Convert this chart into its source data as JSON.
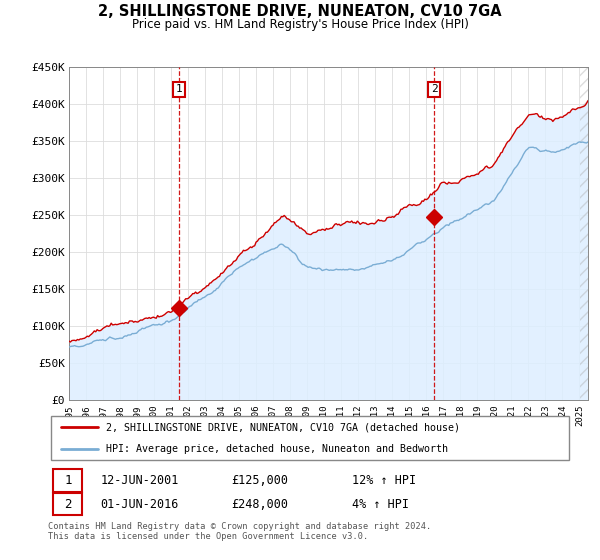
{
  "title": "2, SHILLINGSTONE DRIVE, NUNEATON, CV10 7GA",
  "subtitle": "Price paid vs. HM Land Registry's House Price Index (HPI)",
  "ylim": [
    0,
    450000
  ],
  "yticks": [
    0,
    50000,
    100000,
    150000,
    200000,
    250000,
    300000,
    350000,
    400000,
    450000
  ],
  "legend_line1": "2, SHILLINGSTONE DRIVE, NUNEATON, CV10 7GA (detached house)",
  "legend_line2": "HPI: Average price, detached house, Nuneaton and Bedworth",
  "annotation1_date": "12-JUN-2001",
  "annotation1_price": "£125,000",
  "annotation1_hpi": "12% ↑ HPI",
  "annotation2_date": "01-JUN-2016",
  "annotation2_price": "£248,000",
  "annotation2_hpi": "4% ↑ HPI",
  "footer": "Contains HM Land Registry data © Crown copyright and database right 2024.\nThis data is licensed under the Open Government Licence v3.0.",
  "red_color": "#cc0000",
  "blue_color": "#7aadd4",
  "blue_fill": "#ddeeff",
  "sale1_x": 2001.45,
  "sale1_y": 125000,
  "sale2_x": 2016.45,
  "sale2_y": 248000,
  "xmin": 1995.0,
  "xmax": 2025.5
}
